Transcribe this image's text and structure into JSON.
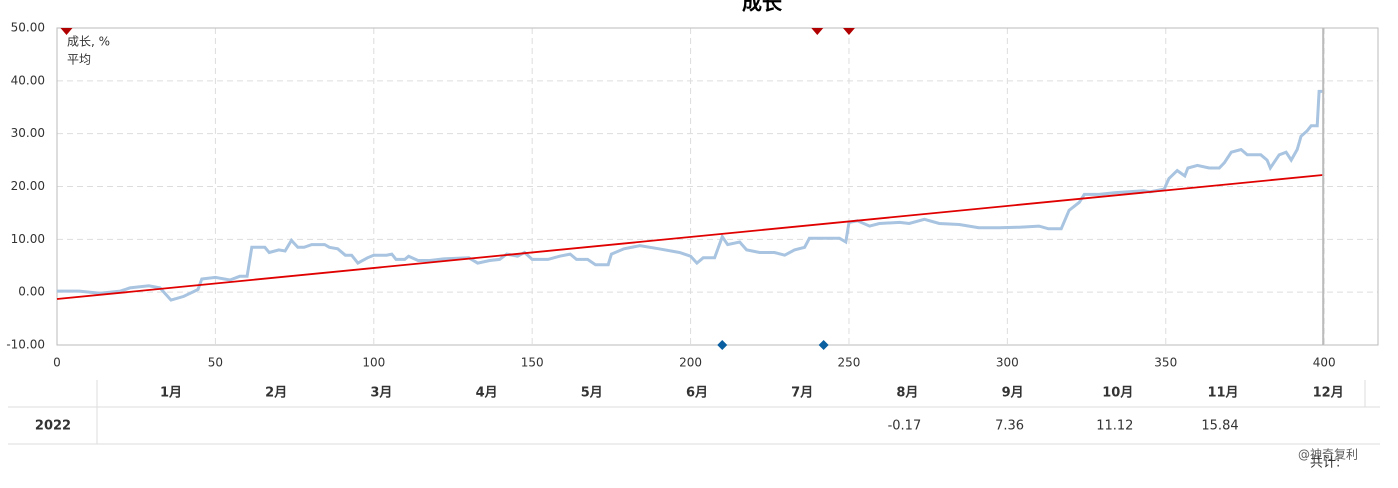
{
  "chart_data": {
    "type": "line",
    "title": "成长",
    "xlim": [
      0,
      417
    ],
    "xticks": [
      0,
      50,
      100,
      150,
      200,
      250,
      300,
      350,
      400
    ],
    "ylim": [
      -10,
      50
    ],
    "yticks": [
      {
        "value": -10,
        "label": "-10.00"
      },
      {
        "value": 0,
        "label": "0.00"
      },
      {
        "value": 10,
        "label": "10.00"
      },
      {
        "value": 20,
        "label": "20.00"
      },
      {
        "value": 30,
        "label": "30.00"
      },
      {
        "value": 40,
        "label": "40.00"
      },
      {
        "value": 50,
        "label": "50.00"
      }
    ],
    "grid": true,
    "legend": "top-left",
    "series": [
      {
        "name": "成长, %",
        "color": "#a8c4e0",
        "legend_color": "#1a6fb5",
        "x": [
          0,
          7,
          13.6,
          20,
          23,
          29,
          32.5,
          36,
          40,
          44.5,
          45.7,
          50,
          54.6,
          57.7,
          60,
          61.5,
          65.6,
          67,
          70,
          72,
          74,
          76,
          78,
          80.4,
          84.5,
          86,
          88.6,
          91,
          93,
          95,
          98,
          100,
          104,
          105.7,
          107,
          109.8,
          111,
          114,
          117.7,
          122,
          130,
          132.8,
          136.6,
          139.7,
          142,
          145.4,
          147.6,
          150,
          155,
          158.7,
          162,
          164,
          167.5,
          170,
          174,
          175,
          179,
          184,
          190,
          196.5,
          200,
          202,
          204,
          207.6,
          210,
          211.7,
          215.5,
          217.7,
          221.8,
          226.5,
          229.7,
          232.8,
          236,
          237.5,
          243.8,
          247,
          249,
          250,
          252.7,
          256.5,
          259.6,
          266,
          269,
          273.8,
          278.5,
          284.8,
          291,
          297.5,
          303.8,
          310,
          313,
          317,
          319.5,
          322.7,
          324.3,
          329,
          333.8,
          338.5,
          343,
          345,
          349.5,
          351,
          353.6,
          356,
          357,
          360,
          363.7,
          366.9,
          368.5,
          370.7,
          373.8,
          375.7,
          380,
          382,
          383,
          385.8,
          388,
          389.6,
          391.5,
          392.7,
          394.6,
          395.9,
          397.8,
          398.4,
          399.7
        ],
        "values": [
          0.2,
          0.2,
          -0.2,
          0.2,
          0.8,
          1.2,
          0.8,
          -1.5,
          -0.8,
          0.5,
          2.5,
          2.8,
          2.3,
          3,
          3,
          8.5,
          8.5,
          7.5,
          8,
          7.8,
          9.8,
          8.5,
          8.5,
          9,
          9,
          8.5,
          8.2,
          7,
          7,
          5.5,
          6.5,
          7,
          7,
          7.2,
          6.2,
          6.2,
          6.8,
          6,
          6,
          6.3,
          6.5,
          5.5,
          6,
          6.2,
          7.2,
          6.8,
          7.5,
          6.2,
          6.2,
          6.8,
          7.2,
          6.2,
          6.2,
          5.2,
          5.2,
          7.2,
          8.2,
          8.8,
          8.2,
          7.5,
          6.8,
          5.5,
          6.5,
          6.5,
          10.5,
          9,
          9.5,
          8,
          7.5,
          7.5,
          7,
          8,
          8.5,
          10.2,
          10.2,
          10.2,
          9.5,
          13.2,
          13.5,
          12.5,
          13,
          13.2,
          13,
          13.8,
          13,
          12.8,
          12.2,
          12.2,
          12.3,
          12.5,
          12,
          12,
          15.5,
          17,
          18.5,
          18.5,
          18.8,
          19,
          19.2,
          19,
          19.5,
          21.5,
          23,
          22,
          23.5,
          24,
          23.5,
          23.5,
          24.5,
          26.5,
          27,
          26,
          26,
          25,
          23.5,
          26,
          26.5,
          25,
          27,
          29.5,
          30.5,
          31.5,
          31.5,
          38,
          38
        ]
      },
      {
        "name": "平均",
        "color": "#e00000",
        "legend_color": "#c00000",
        "x": [
          0,
          400
        ],
        "values": [
          -1.3,
          22.2
        ]
      }
    ],
    "markers": [
      {
        "shape": "triangle",
        "color": "#b00000",
        "x": [
          3,
          240,
          250
        ],
        "y": 50
      },
      {
        "shape": "diamond",
        "color": "#0a5fa0",
        "x": [
          210,
          242
        ],
        "y": -10
      }
    ]
  },
  "table": {
    "columns": [
      "1月",
      "2月",
      "3月",
      "4月",
      "5月",
      "6月",
      "7月",
      "8月",
      "9月",
      "10月",
      "11月",
      "12月"
    ],
    "rows": [
      {
        "year": "2022",
        "values": [
          null,
          null,
          null,
          null,
          null,
          null,
          null,
          -0.17,
          7.36,
          11.12,
          15.84,
          null
        ]
      }
    ],
    "total_label": "共计:"
  },
  "watermark": "@神奇复利"
}
